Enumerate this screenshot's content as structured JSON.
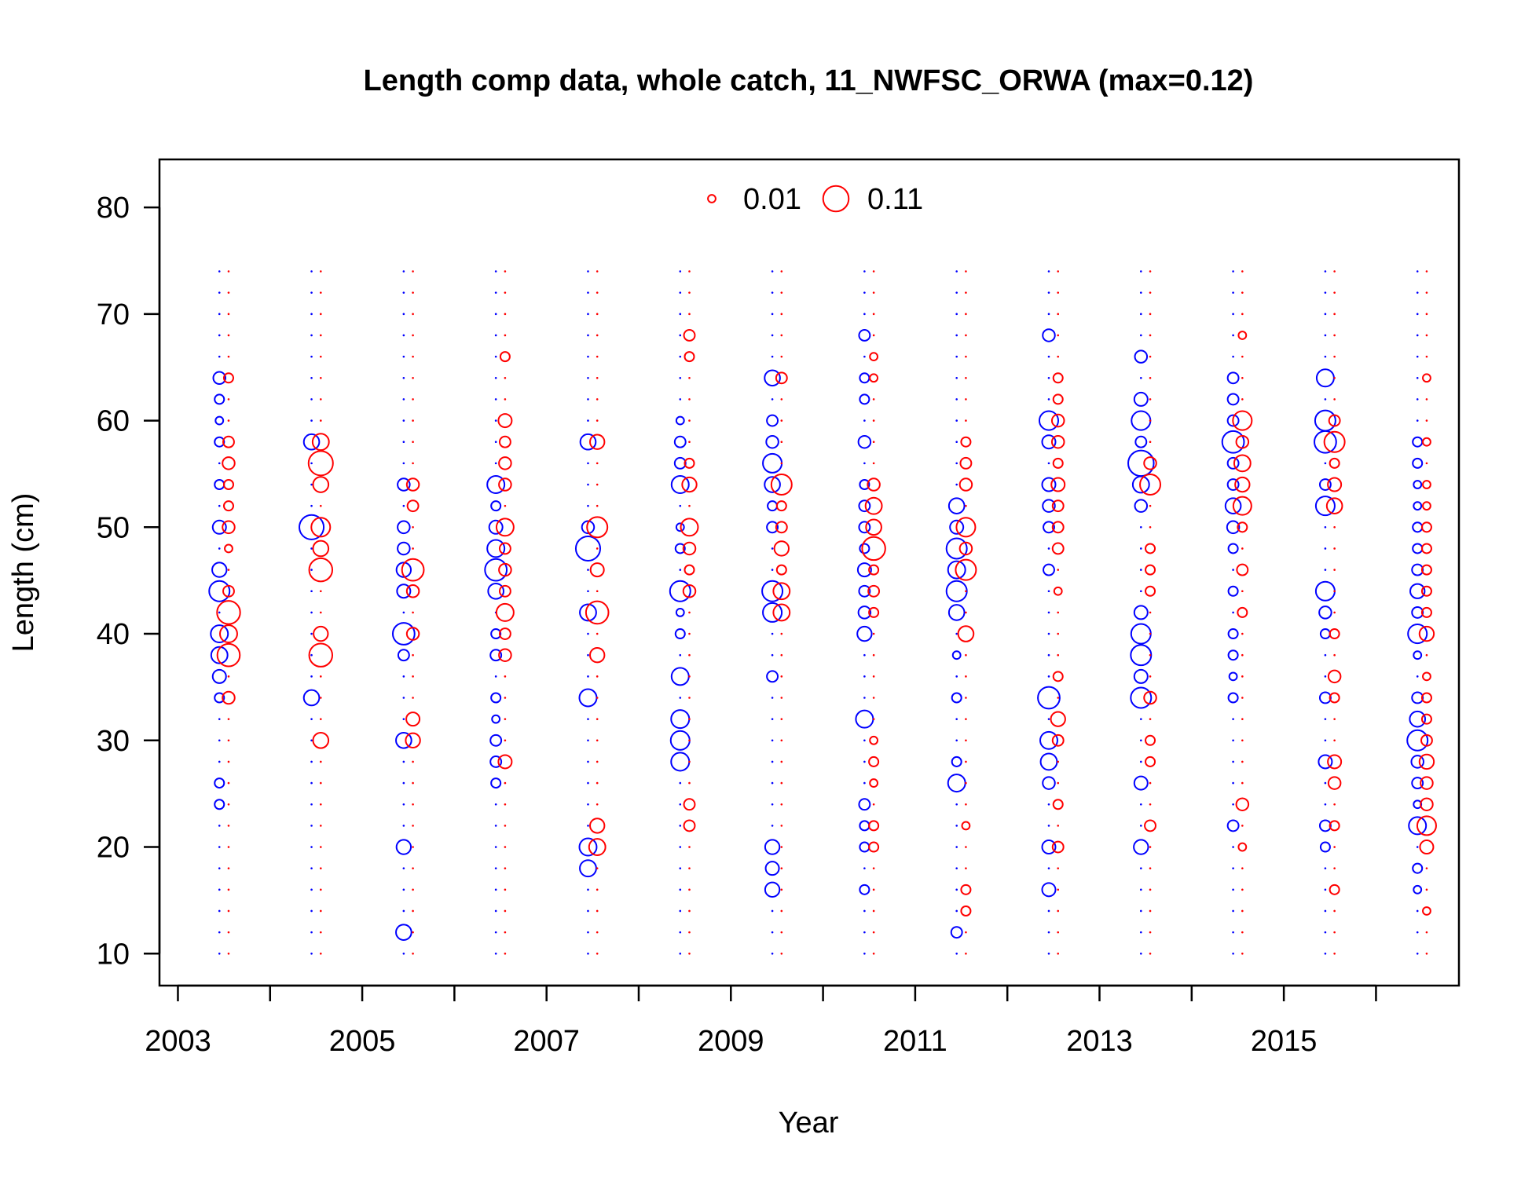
{
  "chart_data": {
    "type": "scatter",
    "title": "Length comp data, whole catch, 11_NWFSC_ORWA (max=0.12)",
    "xlabel": "Year",
    "ylabel": "Length (cm)",
    "xlim": [
      2002.8,
      2016.9
    ],
    "ylim": [
      7,
      84.5
    ],
    "xticks": [
      2003,
      2004,
      2005,
      2006,
      2007,
      2008,
      2009,
      2010,
      2011,
      2012,
      2013,
      2014,
      2015,
      2016
    ],
    "xtick_labels": [
      "2003",
      "",
      "2005",
      "",
      "2007",
      "",
      "2009",
      "",
      "2011",
      "",
      "2013",
      "",
      "2015",
      ""
    ],
    "yticks": [
      10,
      20,
      30,
      40,
      50,
      60,
      70,
      80
    ],
    "yticks_labels": [
      "10",
      "20",
      "30",
      "40",
      "50",
      "60",
      "70",
      "80"
    ],
    "grid": false,
    "max_proportion": 0.12,
    "legend": {
      "placement": "top-center",
      "color": "#ff0000",
      "entries": [
        {
          "label": "0.01",
          "value": 0.01
        },
        {
          "label": "0.11",
          "value": 0.11
        }
      ]
    },
    "colors": {
      "series_a": "#0000ff",
      "series_b": "#ff0000",
      "axis": "#000000"
    },
    "length_bins": [
      10,
      12,
      14,
      16,
      18,
      20,
      22,
      24,
      26,
      28,
      30,
      32,
      34,
      36,
      38,
      40,
      42,
      44,
      46,
      48,
      50,
      52,
      54,
      56,
      58,
      60,
      62,
      64,
      66,
      68,
      70,
      72,
      74
    ],
    "series": [
      {
        "color": "#0000ff",
        "x_offset": -0.05,
        "points": [
          {
            "x": 2003.5,
            "values": {
              "24": 0.015,
              "26": 0.015,
              "34": 0.015,
              "36": 0.03,
              "38": 0.045,
              "40": 0.05,
              "44": 0.07,
              "46": 0.035,
              "50": 0.03,
              "54": 0.015,
              "58": 0.015,
              "60": 0.01,
              "62": 0.015,
              "64": 0.025
            }
          },
          {
            "x": 2004.5,
            "values": {
              "34": 0.04,
              "50": 0.1,
              "58": 0.04
            }
          },
          {
            "x": 2005.5,
            "values": {
              "12": 0.04,
              "20": 0.035,
              "30": 0.04,
              "38": 0.02,
              "40": 0.08,
              "44": 0.03,
              "46": 0.035,
              "48": 0.025,
              "50": 0.025,
              "54": 0.025
            }
          },
          {
            "x": 2006.5,
            "values": {
              "26": 0.015,
              "28": 0.02,
              "30": 0.02,
              "32": 0.01,
              "34": 0.015,
              "38": 0.02,
              "40": 0.015,
              "44": 0.04,
              "46": 0.08,
              "48": 0.05,
              "50": 0.03,
              "52": 0.015,
              "54": 0.05
            }
          },
          {
            "x": 2007.5,
            "values": {
              "18": 0.045,
              "20": 0.05,
              "34": 0.05,
              "42": 0.045,
              "48": 0.1,
              "50": 0.025,
              "58": 0.04
            }
          },
          {
            "x": 2008.5,
            "values": {
              "28": 0.055,
              "30": 0.06,
              "32": 0.055,
              "36": 0.05,
              "40": 0.015,
              "42": 0.01,
              "44": 0.07,
              "48": 0.015,
              "50": 0.01,
              "54": 0.05,
              "56": 0.02,
              "58": 0.02,
              "60": 0.01
            }
          },
          {
            "x": 2009.5,
            "values": {
              "16": 0.035,
              "18": 0.03,
              "20": 0.035,
              "36": 0.02,
              "42": 0.06,
              "44": 0.07,
              "50": 0.02,
              "52": 0.015,
              "54": 0.04,
              "56": 0.06,
              "58": 0.025,
              "60": 0.02,
              "64": 0.04
            }
          },
          {
            "x": 2010.5,
            "values": {
              "16": 0.015,
              "20": 0.015,
              "22": 0.015,
              "24": 0.02,
              "32": 0.05,
              "40": 0.035,
              "42": 0.025,
              "44": 0.02,
              "46": 0.03,
              "48": 0.015,
              "50": 0.02,
              "52": 0.02,
              "54": 0.015,
              "58": 0.025,
              "62": 0.015,
              "64": 0.015,
              "68": 0.02
            }
          },
          {
            "x": 2011.5,
            "values": {
              "12": 0.02,
              "26": 0.05,
              "28": 0.015,
              "34": 0.015,
              "38": 0.01,
              "42": 0.04,
              "44": 0.07,
              "46": 0.05,
              "48": 0.07,
              "50": 0.03,
              "52": 0.04
            }
          },
          {
            "x": 2012.5,
            "values": {
              "16": 0.03,
              "20": 0.03,
              "26": 0.025,
              "28": 0.045,
              "30": 0.05,
              "34": 0.08,
              "46": 0.02,
              "50": 0.02,
              "52": 0.025,
              "54": 0.03,
              "58": 0.03,
              "60": 0.06,
              "68": 0.025
            }
          },
          {
            "x": 2013.5,
            "values": {
              "20": 0.035,
              "26": 0.03,
              "34": 0.07,
              "36": 0.03,
              "38": 0.07,
              "40": 0.065,
              "42": 0.03,
              "52": 0.025,
              "54": 0.045,
              "56": 0.11,
              "58": 0.02,
              "60": 0.06,
              "62": 0.03,
              "66": 0.025
            }
          },
          {
            "x": 2014.5,
            "values": {
              "22": 0.02,
              "34": 0.015,
              "36": 0.01,
              "38": 0.015,
              "40": 0.015,
              "44": 0.015,
              "48": 0.015,
              "50": 0.025,
              "52": 0.04,
              "54": 0.02,
              "56": 0.02,
              "58": 0.08,
              "60": 0.02,
              "62": 0.02,
              "64": 0.02
            }
          },
          {
            "x": 2015.5,
            "values": {
              "20": 0.015,
              "22": 0.02,
              "28": 0.03,
              "34": 0.02,
              "40": 0.015,
              "42": 0.025,
              "44": 0.06,
              "52": 0.06,
              "54": 0.02,
              "58": 0.08,
              "60": 0.07,
              "64": 0.05
            }
          },
          {
            "x": 2016.5,
            "values": {
              "16": 0.01,
              "18": 0.015,
              "22": 0.05,
              "24": 0.01,
              "26": 0.02,
              "28": 0.025,
              "30": 0.07,
              "32": 0.04,
              "34": 0.02,
              "38": 0.01,
              "40": 0.06,
              "42": 0.02,
              "44": 0.035,
              "46": 0.02,
              "48": 0.015,
              "50": 0.015,
              "52": 0.01,
              "54": 0.01,
              "56": 0.015,
              "58": 0.015
            }
          }
        ]
      },
      {
        "color": "#ff0000",
        "x_offset": 0.05,
        "points": [
          {
            "x": 2003.5,
            "values": {
              "34": 0.025,
              "38": 0.085,
              "40": 0.05,
              "42": 0.09,
              "44": 0.02,
              "48": 0.01,
              "50": 0.025,
              "52": 0.015,
              "54": 0.015,
              "56": 0.025,
              "58": 0.02,
              "64": 0.015
            }
          },
          {
            "x": 2004.5,
            "values": {
              "30": 0.04,
              "38": 0.09,
              "40": 0.035,
              "46": 0.09,
              "48": 0.04,
              "50": 0.06,
              "54": 0.04,
              "56": 0.1,
              "58": 0.045
            }
          },
          {
            "x": 2005.5,
            "values": {
              "30": 0.035,
              "32": 0.03,
              "40": 0.025,
              "44": 0.025,
              "46": 0.08,
              "52": 0.02,
              "54": 0.025
            }
          },
          {
            "x": 2006.5,
            "values": {
              "28": 0.03,
              "38": 0.025,
              "40": 0.02,
              "42": 0.05,
              "44": 0.02,
              "46": 0.025,
              "48": 0.02,
              "50": 0.05,
              "54": 0.025,
              "56": 0.025,
              "58": 0.02,
              "60": 0.03,
              "66": 0.015
            }
          },
          {
            "x": 2007.5,
            "values": {
              "20": 0.045,
              "22": 0.035,
              "38": 0.035,
              "42": 0.085,
              "46": 0.03,
              "50": 0.07,
              "58": 0.035
            }
          },
          {
            "x": 2008.5,
            "values": {
              "22": 0.02,
              "24": 0.02,
              "44": 0.025,
              "46": 0.015,
              "48": 0.025,
              "50": 0.05,
              "54": 0.035,
              "56": 0.015,
              "66": 0.015,
              "68": 0.02
            }
          },
          {
            "x": 2009.5,
            "values": {
              "42": 0.045,
              "44": 0.045,
              "46": 0.015,
              "48": 0.035,
              "50": 0.02,
              "52": 0.015,
              "54": 0.07,
              "64": 0.02
            }
          },
          {
            "x": 2010.5,
            "values": {
              "20": 0.015,
              "22": 0.015,
              "26": 0.01,
              "28": 0.015,
              "30": 0.01,
              "42": 0.015,
              "44": 0.02,
              "46": 0.015,
              "48": 0.09,
              "50": 0.04,
              "52": 0.045,
              "54": 0.025,
              "64": 0.01,
              "66": 0.01
            }
          },
          {
            "x": 2011.5,
            "values": {
              "14": 0.015,
              "16": 0.015,
              "22": 0.01,
              "40": 0.04,
              "46": 0.07,
              "48": 0.025,
              "50": 0.06,
              "54": 0.025,
              "56": 0.02,
              "58": 0.015
            }
          },
          {
            "x": 2012.5,
            "values": {
              "20": 0.02,
              "24": 0.015,
              "30": 0.02,
              "32": 0.035,
              "36": 0.015,
              "44": 0.01,
              "48": 0.02,
              "50": 0.02,
              "52": 0.02,
              "54": 0.03,
              "56": 0.015,
              "58": 0.025,
              "60": 0.025,
              "62": 0.015,
              "64": 0.015
            }
          },
          {
            "x": 2013.5,
            "values": {
              "22": 0.02,
              "28": 0.015,
              "30": 0.015,
              "34": 0.025,
              "44": 0.015,
              "46": 0.015,
              "48": 0.015,
              "54": 0.07,
              "56": 0.025
            }
          },
          {
            "x": 2014.5,
            "values": {
              "20": 0.01,
              "24": 0.025,
              "42": 0.015,
              "46": 0.02,
              "50": 0.015,
              "52": 0.055,
              "54": 0.035,
              "56": 0.045,
              "58": 0.025,
              "60": 0.06,
              "68": 0.01
            }
          },
          {
            "x": 2015.5,
            "values": {
              "16": 0.015,
              "22": 0.015,
              "26": 0.025,
              "28": 0.03,
              "34": 0.015,
              "36": 0.025,
              "40": 0.015,
              "52": 0.04,
              "54": 0.03,
              "56": 0.015,
              "58": 0.07,
              "60": 0.02
            }
          },
          {
            "x": 2016.5,
            "values": {
              "14": 0.01,
              "20": 0.03,
              "22": 0.06,
              "24": 0.025,
              "26": 0.025,
              "28": 0.035,
              "30": 0.02,
              "32": 0.015,
              "34": 0.015,
              "36": 0.01,
              "40": 0.035,
              "42": 0.015,
              "44": 0.015,
              "46": 0.015,
              "48": 0.015,
              "50": 0.015,
              "52": 0.01,
              "54": 0.01,
              "58": 0.01,
              "64": 0.01
            }
          }
        ]
      }
    ]
  }
}
